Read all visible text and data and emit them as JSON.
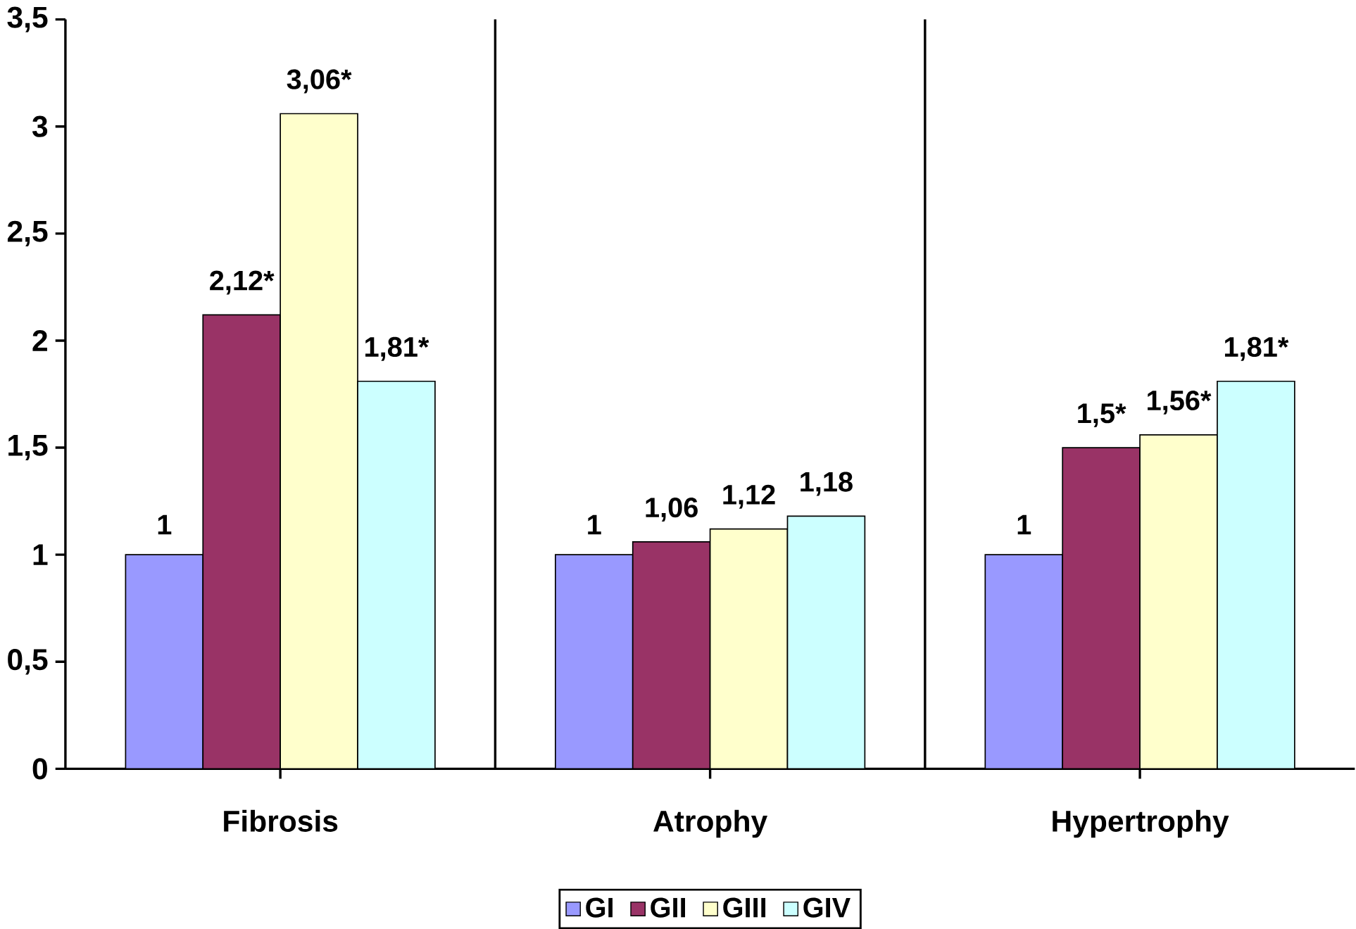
{
  "chart_data": {
    "type": "bar",
    "categories": [
      "Fibrosis",
      "Atrophy",
      "Hypertrophy"
    ],
    "series": [
      {
        "name": "GI",
        "color": "#9999ff",
        "values": [
          1,
          1,
          1
        ],
        "value_labels": [
          "1",
          "1",
          "1"
        ]
      },
      {
        "name": "GII",
        "color": "#993366",
        "values": [
          2.12,
          1.06,
          1.5
        ],
        "value_labels": [
          "2,12*",
          "1,06",
          "1,5*"
        ]
      },
      {
        "name": "GIII",
        "color": "#ffffcc",
        "values": [
          3.06,
          1.12,
          1.56
        ],
        "value_labels": [
          "3,06*",
          "1,12",
          "1,56*"
        ]
      },
      {
        "name": "GIV",
        "color": "#ccffff",
        "values": [
          1.81,
          1.18,
          1.81
        ],
        "value_labels": [
          "1,81*",
          "1,18",
          "1,81*"
        ]
      }
    ],
    "ylim": [
      0,
      3.5
    ],
    "yticks": [
      0,
      {
        "value": 0.5,
        "label": "0,5"
      },
      1,
      {
        "value": 1.5,
        "label": "1,5"
      },
      2,
      {
        "value": 2.5,
        "label": "2,5"
      },
      3,
      {
        "value": 3.5,
        "label": "3,5"
      }
    ],
    "grid": "x",
    "legend": "bottom"
  }
}
